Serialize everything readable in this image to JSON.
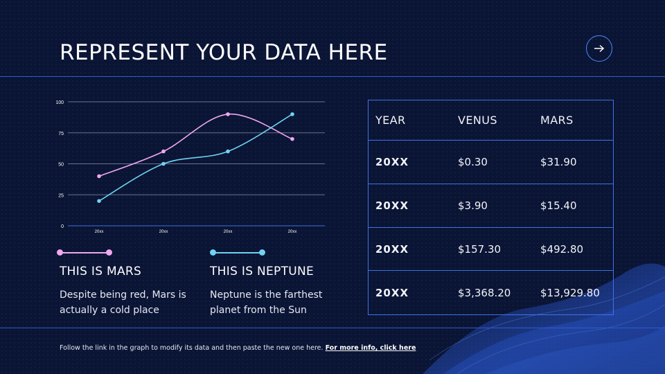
{
  "slide": {
    "title": "REPRESENT YOUR DATA HERE",
    "next_icon": "arrow-right-icon",
    "footer_text": "Follow the link in the graph to modify its data and then paste the new one here.",
    "footer_link": "For more info, click here"
  },
  "colors": {
    "background": "#0a1434",
    "accent_line": "#2e5bd6",
    "mars": "#f0a8f0",
    "neptune": "#6fd3f2"
  },
  "chart_data": {
    "type": "line",
    "categories": [
      "20xx",
      "20xx",
      "20xx",
      "20xx"
    ],
    "ylim": [
      0,
      100
    ],
    "yticks": [
      0,
      25,
      50,
      75,
      100
    ],
    "grid": true,
    "series": [
      {
        "name": "THIS IS MARS",
        "color": "#f0a8f0",
        "values": [
          40,
          60,
          90,
          70
        ]
      },
      {
        "name": "THIS IS NEPTUNE",
        "color": "#6fd3f2",
        "values": [
          20,
          50,
          60,
          90
        ]
      }
    ]
  },
  "legend": [
    {
      "title": "THIS IS MARS",
      "description": "Despite being red, Mars is actually a cold place",
      "color": "#f0a8f0"
    },
    {
      "title": "THIS IS NEPTUNE",
      "description": "Neptune is the farthest planet from the Sun",
      "color": "#6fd3f2"
    }
  ],
  "table": {
    "headers": [
      "YEAR",
      "VENUS",
      "MARS"
    ],
    "rows": [
      [
        "20XX",
        "$0.30",
        "$31.90"
      ],
      [
        "20XX",
        "$3.90",
        "$15.40"
      ],
      [
        "20XX",
        "$157.30",
        "$492.80"
      ],
      [
        "20XX",
        "$3,368.20",
        "$13,929.80"
      ]
    ]
  }
}
